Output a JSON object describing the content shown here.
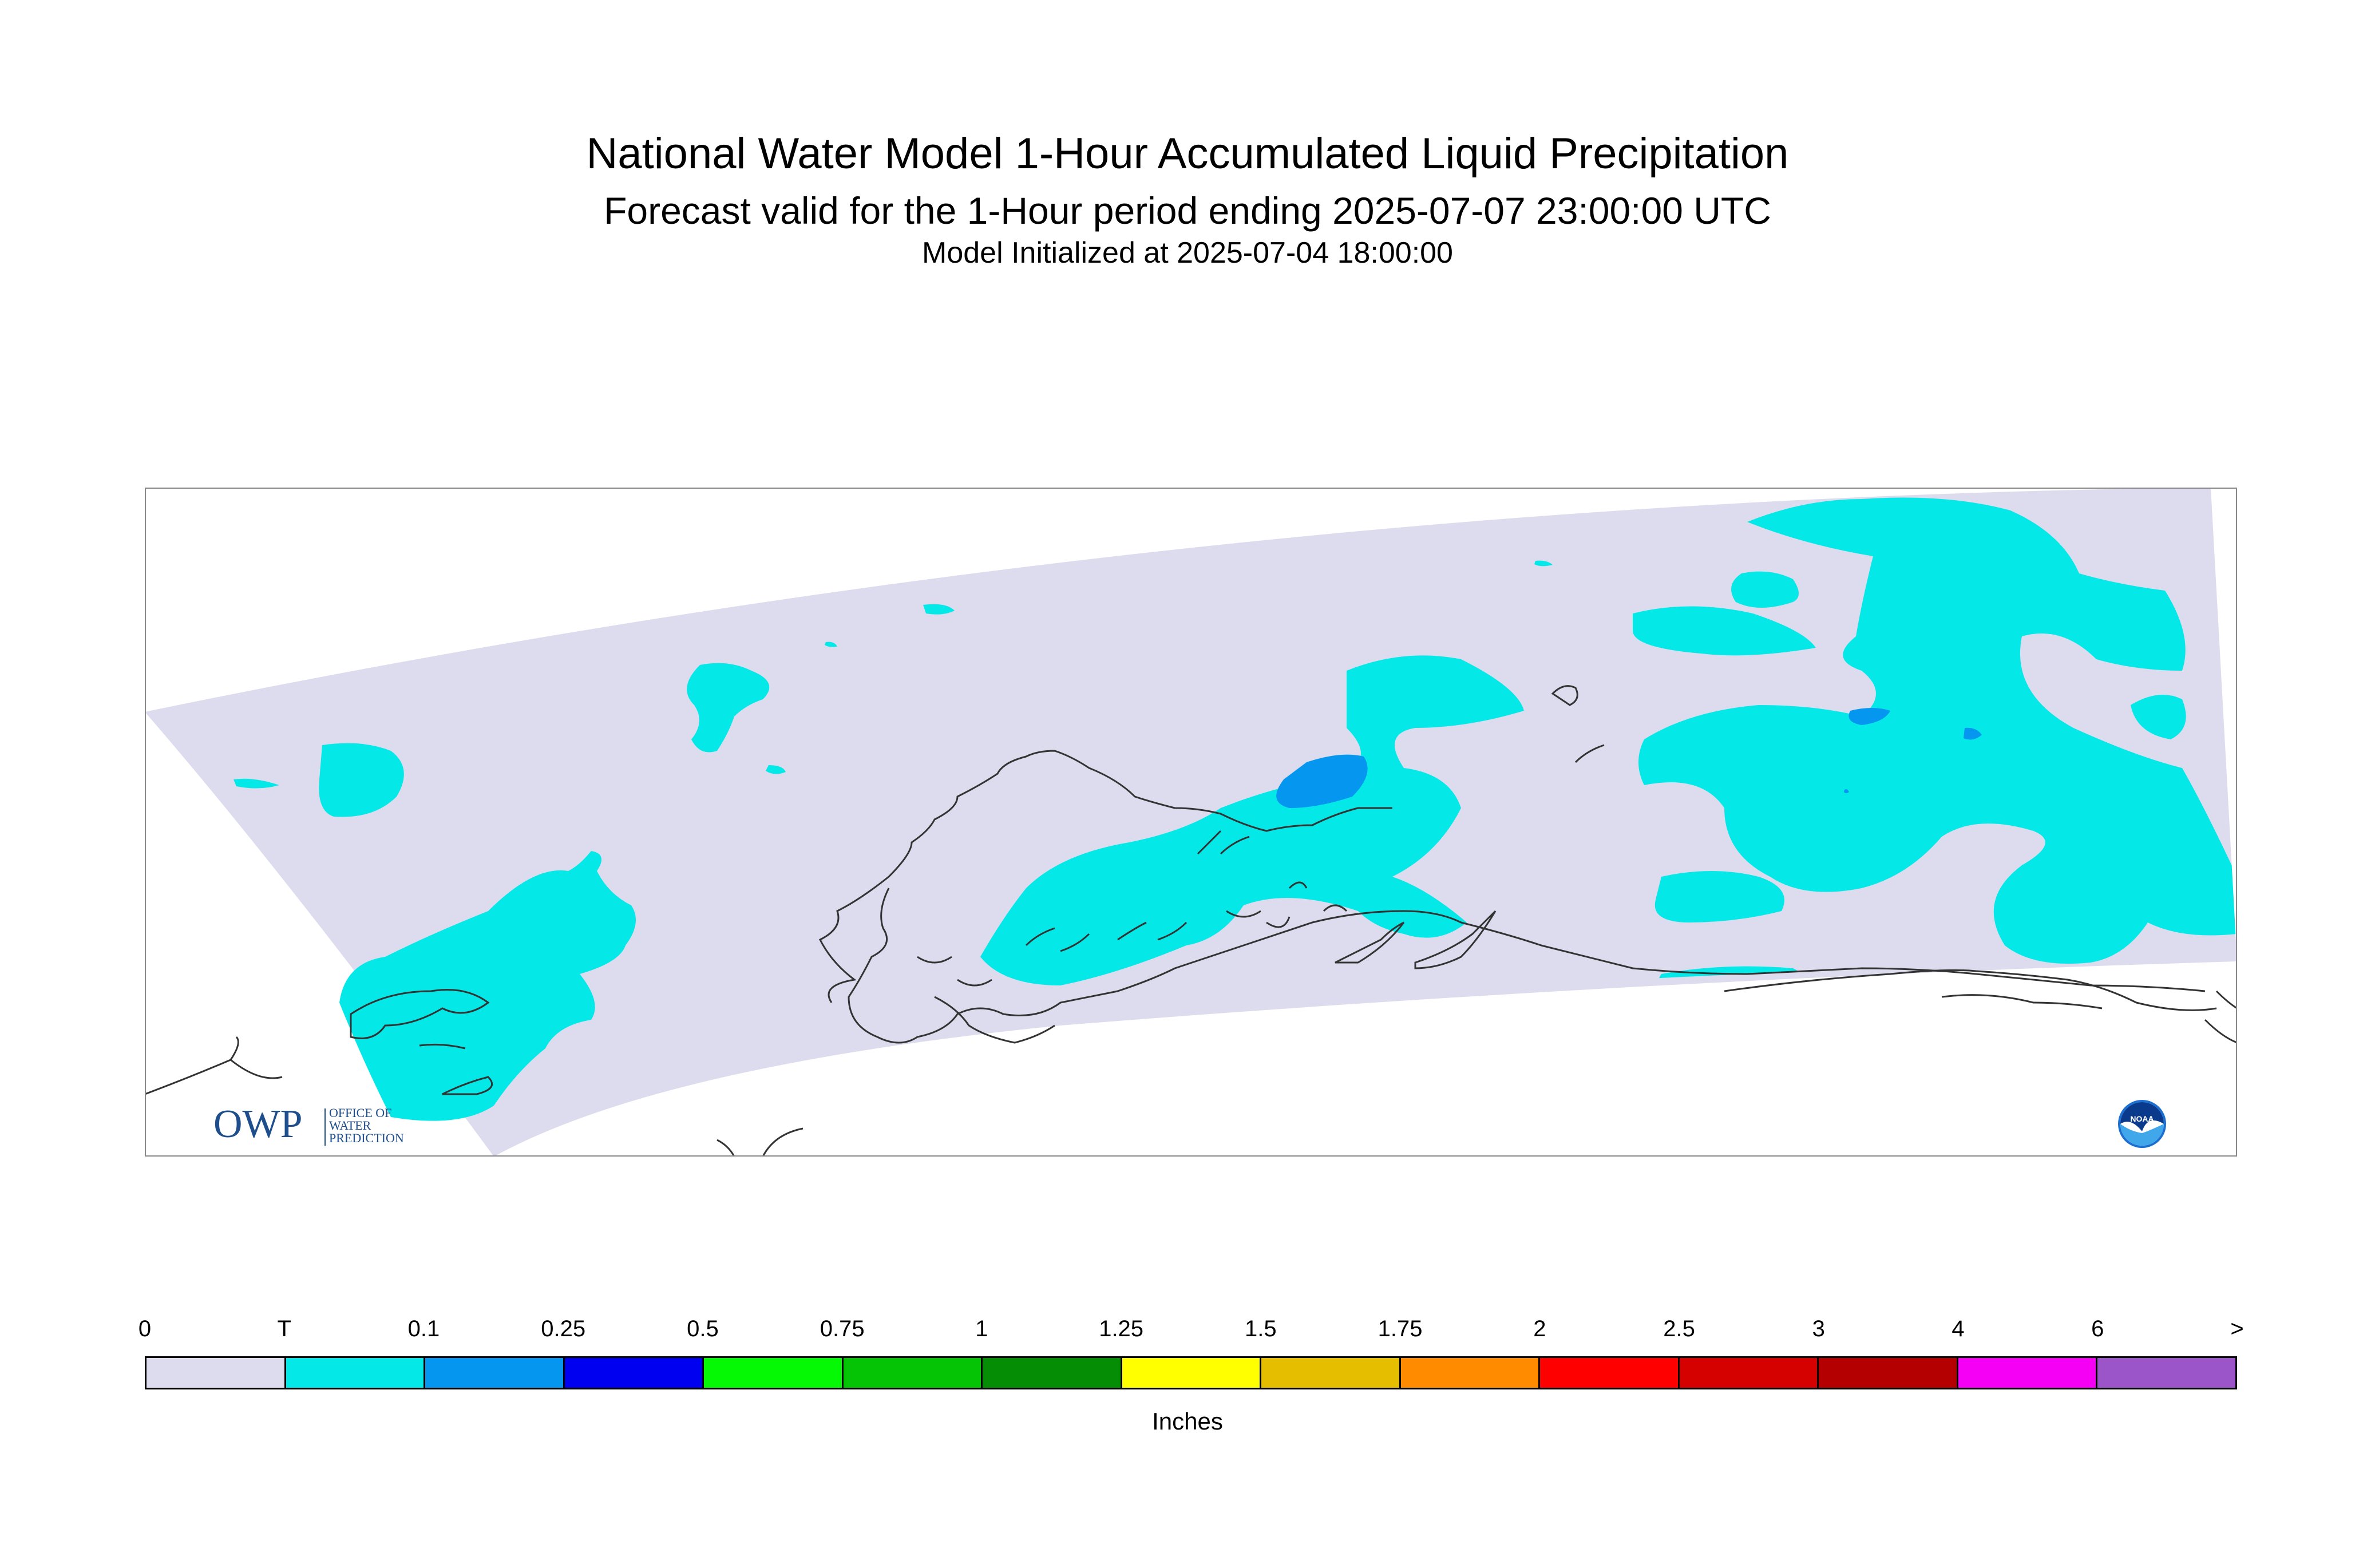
{
  "title": "National Water Model 1-Hour Accumulated Liquid Precipitation",
  "subtitle": "Forecast valid for the 1-Hour period ending 2025-07-07 23:00:00 UTC",
  "initialized": "Model Initialized at 2025-07-04 18:00:00",
  "logos": {
    "owp_text": "OWP",
    "owp_subtext": [
      "OFFICE OF",
      "WATER",
      "PREDICTION"
    ],
    "noaa_text": "NOAA"
  },
  "legend": {
    "units": "Inches",
    "tick_labels": [
      "0",
      "T",
      "0.1",
      "0.25",
      "0.5",
      "0.75",
      "1",
      "1.25",
      "1.5",
      "1.75",
      "2",
      "2.5",
      "3",
      "4",
      "6",
      ">"
    ],
    "colors": [
      "#dcdcee",
      "#05e8e8",
      "#0596f0",
      "#0000f0",
      "#05f905",
      "#05c405",
      "#058d05",
      "#ffff00",
      "#e6be00",
      "#ff8c00",
      "#ff0000",
      "#d50000",
      "#b40000",
      "#f500f5",
      "#9b55c8"
    ]
  },
  "map_colors": {
    "domain_fill": "#dcdcee",
    "trace": "#05e8e8",
    "light": "#0596f0",
    "coastline": "#333333",
    "frame": "#888888"
  }
}
